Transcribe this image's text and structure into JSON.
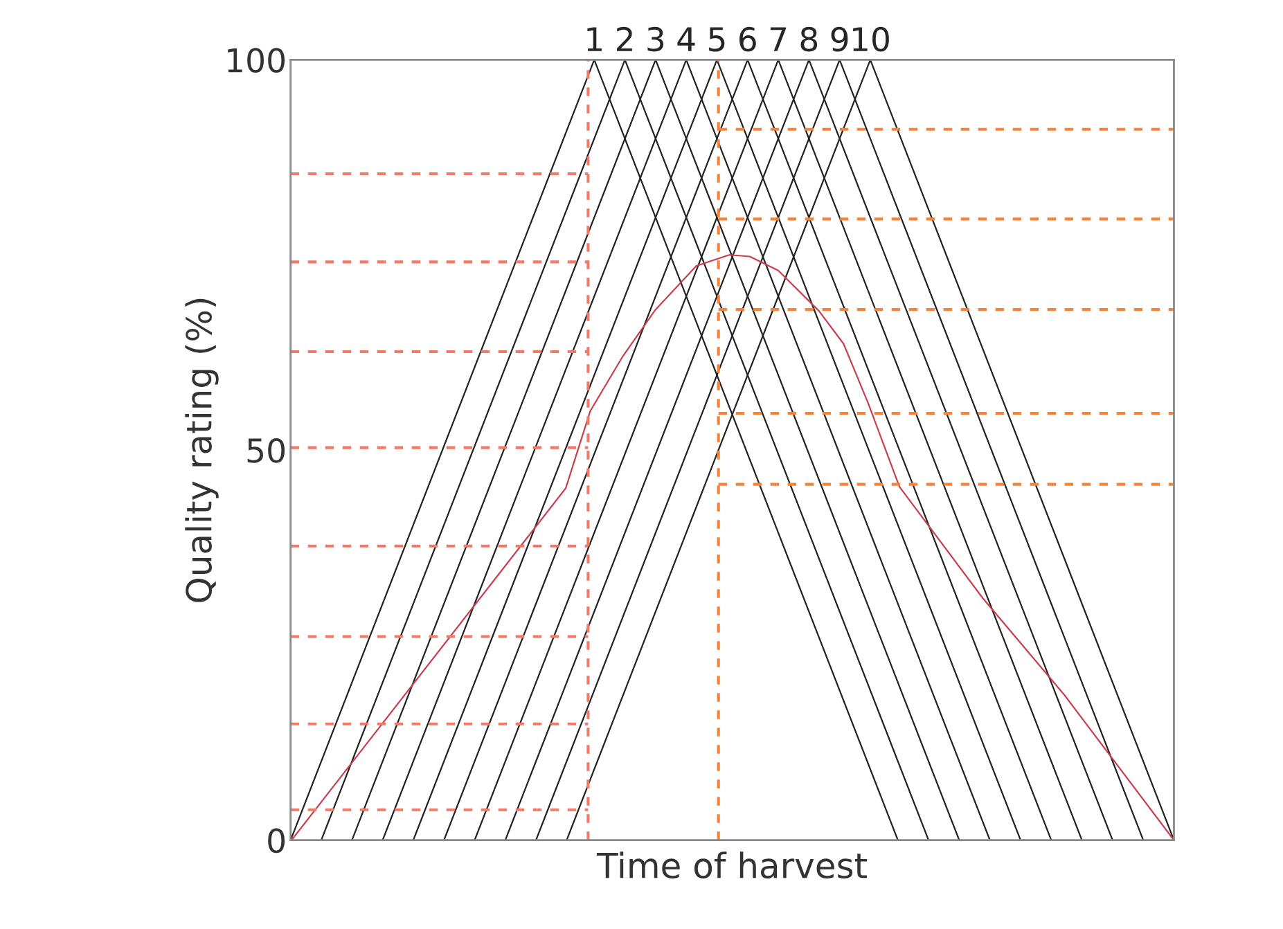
{
  "chart_data": {
    "type": "line",
    "xlabel": "Time of harvest",
    "ylabel": "Quality rating (%)",
    "xlim": [
      -8.9,
      19.9
    ],
    "xticks": [
      1,
      2,
      3,
      4,
      5,
      6,
      7,
      8,
      9,
      10
    ],
    "ylim": [
      0,
      100
    ],
    "yticks": [
      0,
      50,
      100
    ],
    "series": [
      {
        "color": "#222222",
        "x": [
          -8.9,
          1,
          10.9
        ],
        "values": [
          0,
          100,
          0
        ]
      },
      {
        "color": "#222222",
        "x": [
          -7.9,
          2,
          11.9
        ],
        "values": [
          0,
          100,
          0
        ]
      },
      {
        "color": "#222222",
        "x": [
          -6.9,
          3,
          12.9
        ],
        "values": [
          0,
          100,
          0
        ]
      },
      {
        "color": "#222222",
        "x": [
          -5.9,
          4,
          13.9
        ],
        "values": [
          0,
          100,
          0
        ]
      },
      {
        "color": "#222222",
        "x": [
          -4.9,
          5,
          14.9
        ],
        "values": [
          0,
          100,
          0
        ]
      },
      {
        "color": "#222222",
        "x": [
          -3.9,
          6,
          15.9
        ],
        "values": [
          0,
          100,
          0
        ]
      },
      {
        "color": "#222222",
        "x": [
          -2.9,
          7,
          16.9
        ],
        "values": [
          0,
          100,
          0
        ]
      },
      {
        "color": "#222222",
        "x": [
          -1.9,
          8,
          17.9
        ],
        "values": [
          0,
          100,
          0
        ]
      },
      {
        "color": "#222222",
        "x": [
          -0.9,
          9,
          18.9
        ],
        "values": [
          0,
          100,
          0
        ]
      },
      {
        "color": "#222222",
        "x": [
          0.1,
          10,
          19.9
        ],
        "values": [
          0,
          100,
          0
        ]
      },
      {
        "color": "#c8404e",
        "x": [
          -8.87,
          0.07,
          0.87,
          1.93,
          3.0,
          4.33,
          5.4,
          6.07,
          7.0,
          8.33,
          9.13,
          9.93,
          10.95,
          13.67,
          16.33,
          19.9
        ],
        "values": [
          0,
          45.1,
          55,
          62,
          68,
          73.6,
          75,
          74.8,
          73,
          67.8,
          63.6,
          56,
          45.3,
          31,
          18.6,
          0
        ]
      },
      {
        "color": "#f07a6a",
        "line_style": "dashed",
        "x": [
          0.8,
          0.8
        ],
        "values": [
          0,
          100
        ]
      },
      {
        "color": "#f5843a",
        "line_style": "dashed",
        "x": [
          5.05,
          5.05
        ],
        "values": [
          0,
          100
        ]
      },
      {
        "color": "#f07a6a",
        "line_style": "dashed",
        "x": [
          -8.9,
          0.8
        ],
        "values": [
          85.4,
          85.4
        ]
      },
      {
        "color": "#f07a6a",
        "line_style": "dashed",
        "x": [
          -8.9,
          0.8
        ],
        "values": [
          74.1,
          74.1
        ]
      },
      {
        "color": "#f07a6a",
        "line_style": "dashed",
        "x": [
          -8.9,
          0.8
        ],
        "values": [
          62.6,
          62.6
        ]
      },
      {
        "color": "#f07a6a",
        "line_style": "dashed",
        "x": [
          -8.9,
          0.8
        ],
        "values": [
          50.3,
          50.3
        ]
      },
      {
        "color": "#f07a6a",
        "line_style": "dashed",
        "x": [
          -8.9,
          0.8
        ],
        "values": [
          37.7,
          37.7
        ]
      },
      {
        "color": "#f07a6a",
        "line_style": "dashed",
        "x": [
          -8.9,
          0.8
        ],
        "values": [
          26.1,
          26.1
        ]
      },
      {
        "color": "#f07a6a",
        "line_style": "dashed",
        "x": [
          -8.9,
          0.8
        ],
        "values": [
          14.9,
          14.9
        ]
      },
      {
        "color": "#f07a6a",
        "line_style": "dashed",
        "x": [
          -8.9,
          0.8
        ],
        "values": [
          3.9,
          3.9
        ]
      },
      {
        "color": "#f5843a",
        "line_style": "dashed",
        "x": [
          5.05,
          19.9
        ],
        "values": [
          91.1,
          91.1
        ]
      },
      {
        "color": "#f5843a",
        "line_style": "dashed",
        "x": [
          5.05,
          19.9
        ],
        "values": [
          79.6,
          79.6
        ]
      },
      {
        "color": "#f5843a",
        "line_style": "dashed",
        "x": [
          5.05,
          19.9
        ],
        "values": [
          68.0,
          68.0
        ]
      },
      {
        "color": "#f5843a",
        "line_style": "dashed",
        "x": [
          5.05,
          19.9
        ],
        "values": [
          54.7,
          54.7
        ]
      },
      {
        "color": "#f5843a",
        "line_style": "dashed",
        "x": [
          5.05,
          19.9
        ],
        "values": [
          45.6,
          45.6
        ]
      }
    ]
  }
}
